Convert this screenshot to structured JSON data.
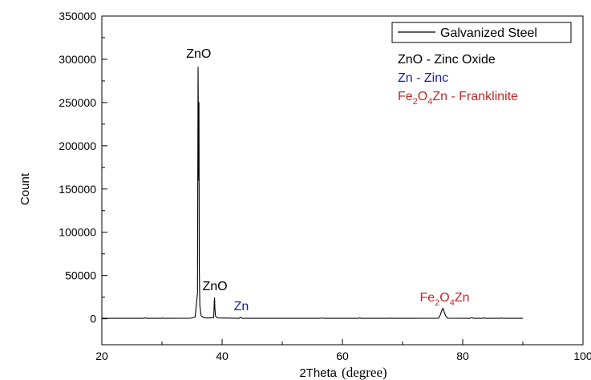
{
  "chart_data": {
    "type": "line",
    "xlabel": "2Theta",
    "xlabel_unit": "(degree)",
    "ylabel": "Count",
    "xlim": [
      20,
      100
    ],
    "ylim": [
      -30000,
      350000
    ],
    "x_ticks": [
      20,
      40,
      60,
      80,
      100
    ],
    "y_ticks": [
      0,
      50000,
      100000,
      150000,
      200000,
      250000,
      300000,
      350000
    ],
    "grid": false,
    "legend_position": "top-right",
    "series": [
      {
        "name": "Galvanized Steel",
        "color": "#000000",
        "x": [
          20,
          27.0,
          27.2,
          27.4,
          29.9,
          30.1,
          30.3,
          34.8,
          35.5,
          35.9,
          36.0,
          36.1,
          36.15,
          36.2,
          36.3,
          36.5,
          36.9,
          37.5,
          38.6,
          38.7,
          38.75,
          38.8,
          38.9,
          39.2,
          42.8,
          43.05,
          43.3,
          56.3,
          56.6,
          56.9,
          62.7,
          62.9,
          63.1,
          67.8,
          68.0,
          68.2,
          76.0,
          76.3,
          76.6,
          76.75,
          76.9,
          77.2,
          77.5,
          81.2,
          81.5,
          81.8,
          83.3,
          83.5,
          83.7,
          86.3,
          86.5,
          86.7,
          90
        ],
        "y": [
          500,
          500,
          1200,
          500,
          500,
          1000,
          500,
          700,
          2000,
          30000,
          291000,
          160000,
          250000,
          60000,
          15000,
          3500,
          1500,
          900,
          1200,
          22000,
          24000,
          12000,
          3000,
          1000,
          500,
          1800,
          500,
          500,
          1000,
          500,
          500,
          1100,
          500,
          500,
          900,
          500,
          700,
          5000,
          11000,
          12000,
          8000,
          3000,
          700,
          500,
          1400,
          500,
          500,
          1200,
          500,
          500,
          1000,
          500,
          500
        ]
      }
    ],
    "annotations": [
      {
        "text": "ZnO",
        "x": 36.1,
        "y": 302000,
        "color": "#000000"
      },
      {
        "text": "ZnO",
        "x": 38.8,
        "y": 33000,
        "color": "#000000"
      },
      {
        "text": "Zn",
        "x": 43.2,
        "y": 10000,
        "color": "#1a1aa6"
      },
      {
        "text": "Fe2O4Zn",
        "x": 77.0,
        "y": 20000,
        "color": "#c0282a"
      }
    ],
    "legend_entries": [
      {
        "text": "ZnO - Zinc Oxide",
        "color": "#000000"
      },
      {
        "text": "Zn - Zinc",
        "color": "#1a1aa6"
      },
      {
        "text": "Fe2O4Zn - Franklinite",
        "color": "#c0282a"
      }
    ]
  }
}
